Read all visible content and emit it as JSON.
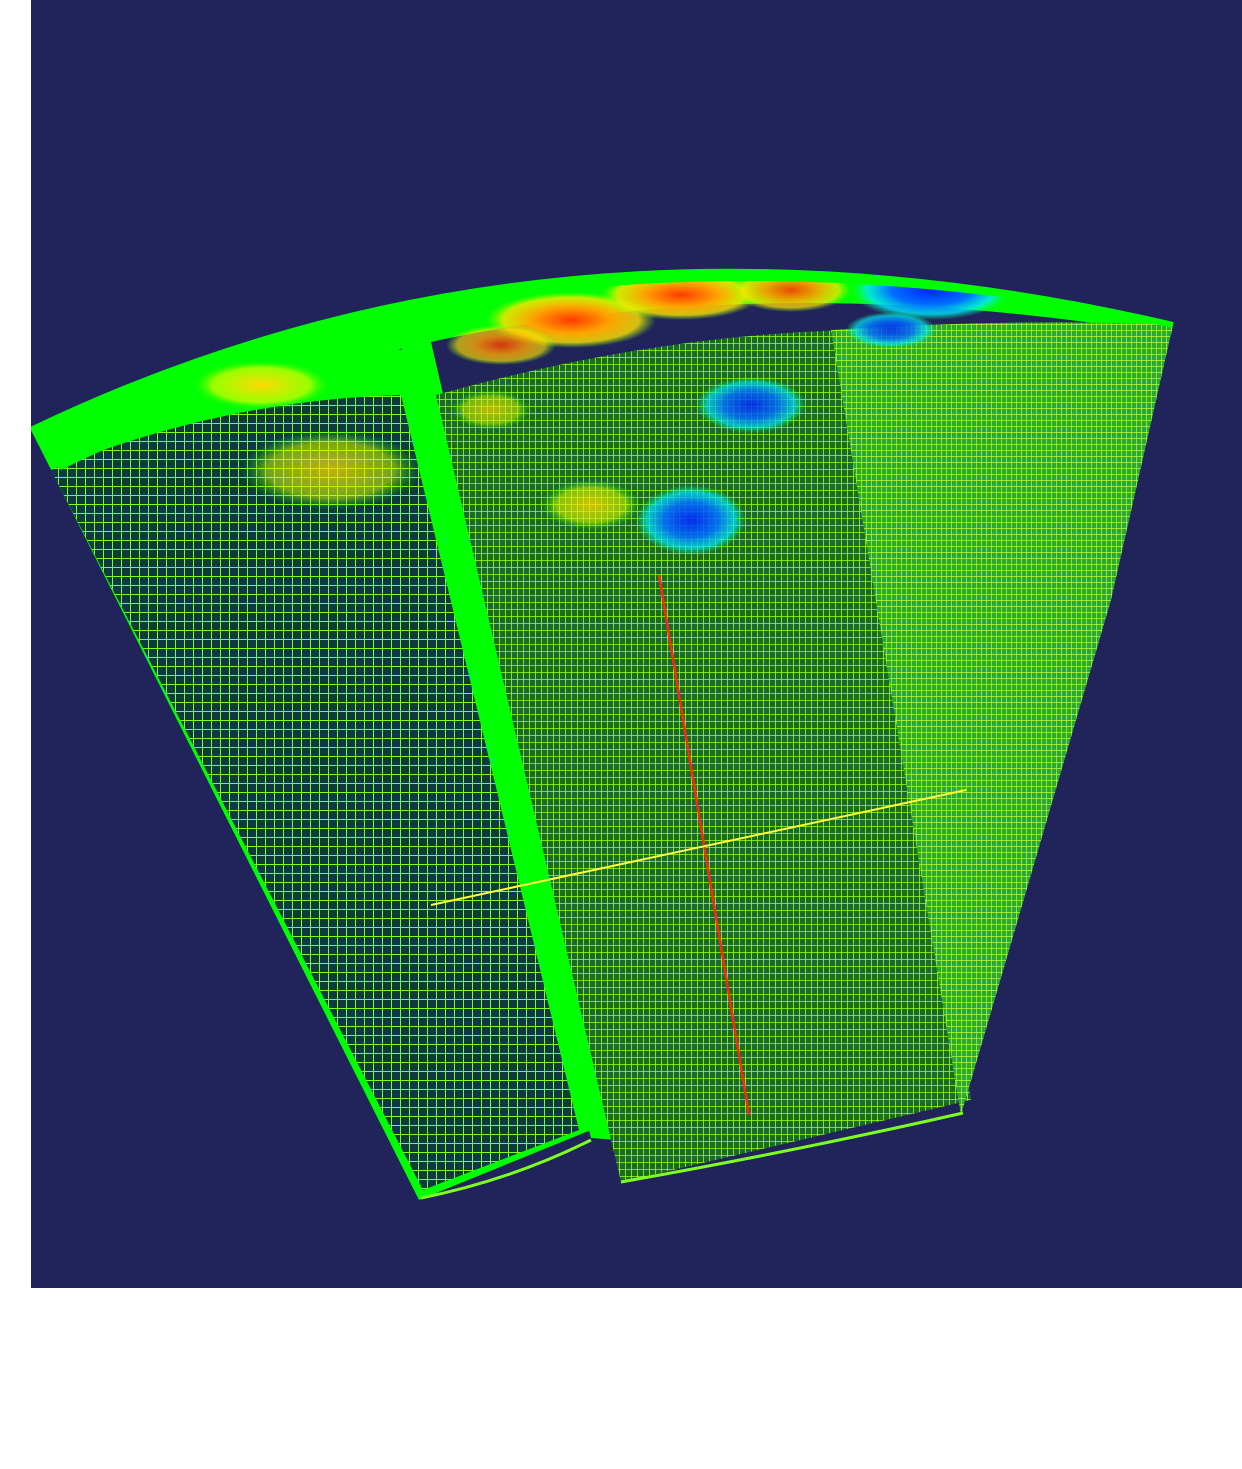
{
  "scene": {
    "kind": "3d-mesh-visualization",
    "description_free": true,
    "colors": {
      "background": "#21245a",
      "mesh_fill": "#00ff00",
      "grid_line": "#d8ff3a",
      "anomaly_hot": "#ff3a00",
      "anomaly_warm": "#ffd200",
      "anomaly_cool": "#00e8ff",
      "anomaly_cold": "#0033ff",
      "axis_red": "#ff2a00",
      "axis_yellow": "#ffff40",
      "page_margin": "#ffffff"
    },
    "icons": []
  }
}
